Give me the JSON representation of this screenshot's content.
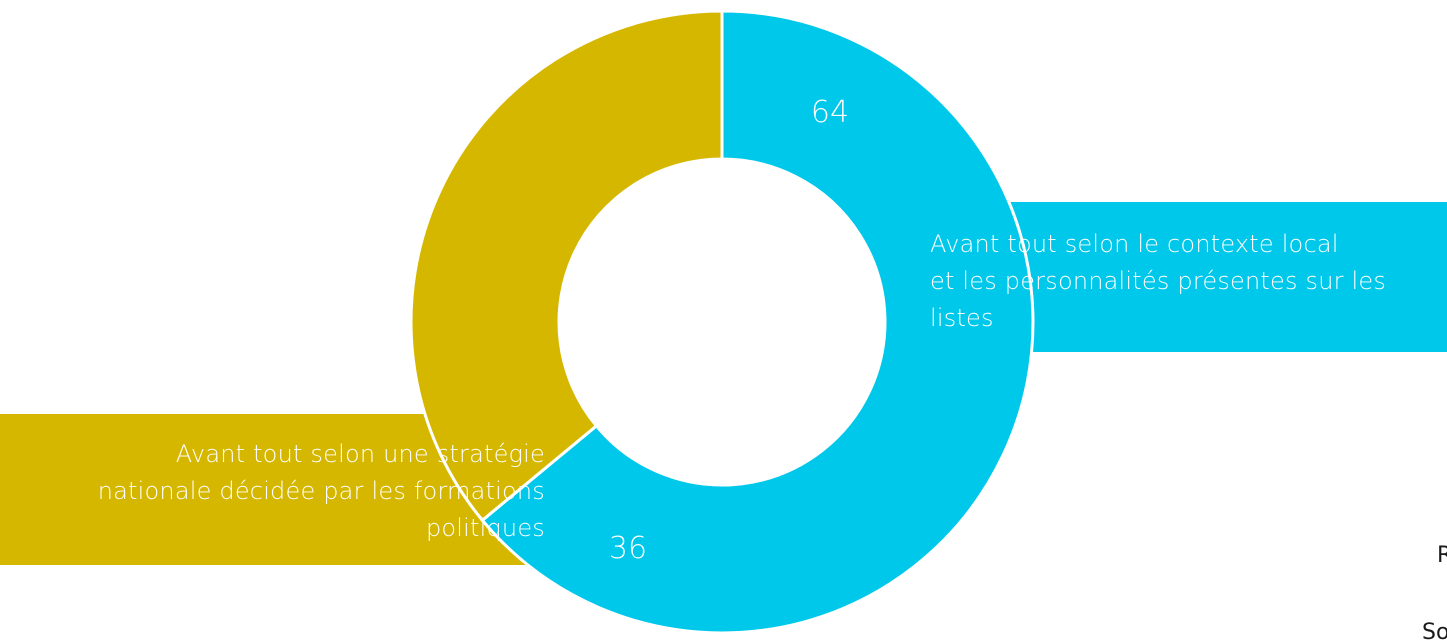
{
  "chart_data": {
    "type": "pie",
    "donut": true,
    "slices": [
      {
        "label": "Avant tout selon le contexte local et les personnalités présentes sur les listes",
        "label_lines": [
          "Avant tout selon le contexte local",
          "et les personnalités présentes sur les",
          "listes"
        ],
        "value": 64,
        "color": "#00C8EA"
      },
      {
        "label": "Avant tout selon une stratégie nationale décidée par les formations politiques",
        "label_lines": [
          "Avant tout selon une stratégie",
          "nationale décidée par les formations",
          "politiques"
        ],
        "value": 36,
        "color": "#D6B700"
      }
    ],
    "title": "",
    "legend": "none"
  },
  "edge_text": {
    "r": "R",
    "so": "So"
  }
}
